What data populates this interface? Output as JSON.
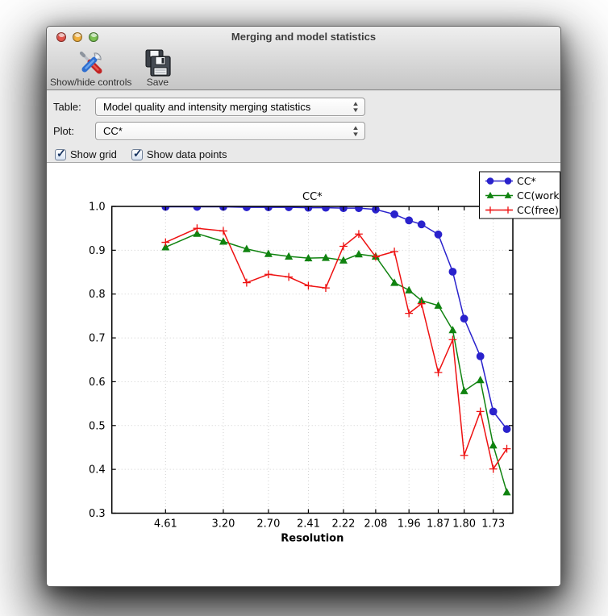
{
  "window": {
    "title": "Merging and model statistics"
  },
  "toolbar": {
    "buttons": [
      {
        "label": "Show/hide controls",
        "icon": "tools-icon"
      },
      {
        "label": "Save",
        "icon": "save-icon"
      }
    ]
  },
  "controls": {
    "table_label": "Table:",
    "table_value": "Model quality and intensity merging statistics",
    "plot_label": "Plot:",
    "plot_value": "CC*",
    "checkboxes": [
      {
        "label": "Show grid",
        "checked": true
      },
      {
        "label": "Show data points",
        "checked": true
      }
    ]
  },
  "chart_data": {
    "type": "line",
    "title": "CC*",
    "xlabel": "Resolution",
    "ylabel": "",
    "grid": true,
    "legend_position": "upper right",
    "x_axis": {
      "transform": "1/d^2",
      "u_min": 0.0,
      "u_max": 0.3513,
      "tick_values": [
        4.61,
        3.2,
        2.7,
        2.41,
        2.22,
        2.08,
        1.96,
        1.87,
        1.8,
        1.73
      ],
      "tick_labels": [
        "4.61",
        "3.20",
        "2.70",
        "2.41",
        "2.22",
        "2.08",
        "1.96",
        "1.87",
        "1.80",
        "1.73"
      ]
    },
    "y_axis": {
      "min": 0.3,
      "max": 1.0,
      "ticks": [
        1.0,
        0.9,
        0.8,
        0.7,
        0.6,
        0.5,
        0.4,
        0.3
      ]
    },
    "resolutions": [
      4.61,
      3.66,
      3.2,
      2.91,
      2.7,
      2.54,
      2.41,
      2.31,
      2.22,
      2.15,
      2.08,
      2.01,
      1.96,
      1.92,
      1.87,
      1.83,
      1.8,
      1.76,
      1.73,
      1.7
    ],
    "series": [
      {
        "name": "CC*",
        "color": "#2a22cc",
        "marker": "circle",
        "values": [
          0.999,
          0.999,
          0.999,
          0.998,
          0.998,
          0.998,
          0.997,
          0.997,
          0.996,
          0.996,
          0.993,
          0.982,
          0.968,
          0.959,
          0.936,
          0.851,
          0.744,
          0.658,
          0.532,
          0.492
        ]
      },
      {
        "name": "CC(work)",
        "color": "#108310",
        "marker": "triangle",
        "values": [
          0.907,
          0.938,
          0.92,
          0.903,
          0.892,
          0.886,
          0.882,
          0.883,
          0.877,
          0.891,
          0.886,
          0.826,
          0.809,
          0.785,
          0.774,
          0.718,
          0.579,
          0.604,
          0.455,
          0.348
        ]
      },
      {
        "name": "CC(free)",
        "color": "#ee1111",
        "marker": "plus",
        "values": [
          0.918,
          0.95,
          0.944,
          0.826,
          0.845,
          0.839,
          0.819,
          0.814,
          0.909,
          0.937,
          0.885,
          0.897,
          0.756,
          0.778,
          0.621,
          0.696,
          0.432,
          0.532,
          0.401,
          0.447
        ]
      }
    ]
  }
}
